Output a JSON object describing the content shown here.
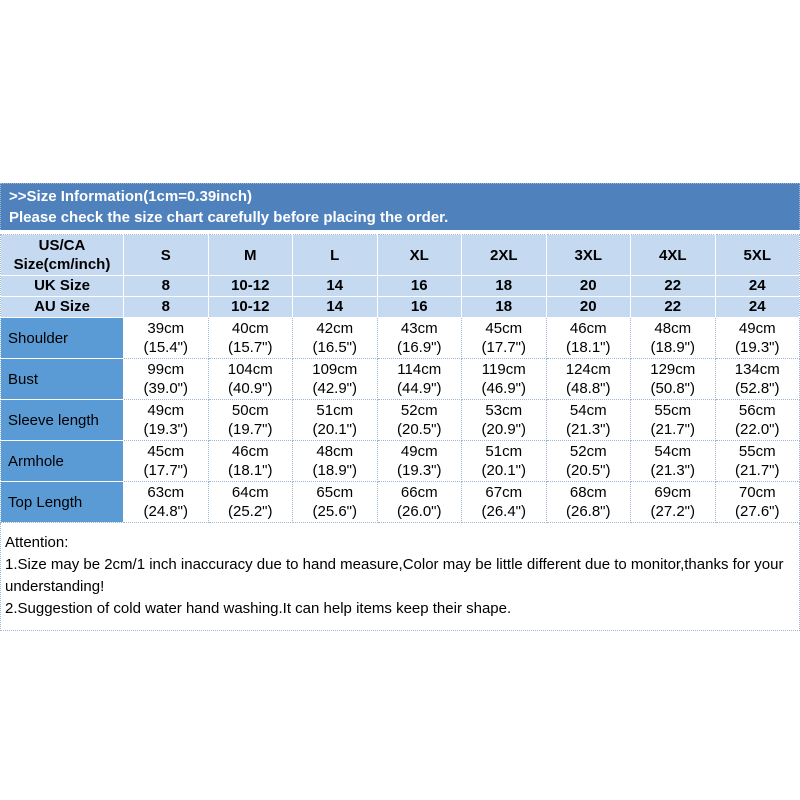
{
  "banner": {
    "line1": ">>Size Information(1cm=0.39inch)",
    "line2": "Please check the size chart carefully before placing the order."
  },
  "colors": {
    "banner_bg": "#4f81bd",
    "header_bg": "#c5d9f1",
    "label_bg": "#5b9bd5",
    "grid_line": "#9fb6cf"
  },
  "table": {
    "corner": {
      "line1": "US/CA",
      "line2": "Size(cm/inch)"
    },
    "size_headers": [
      "S",
      "M",
      "L",
      "XL",
      "2XL",
      "3XL",
      "4XL",
      "5XL"
    ],
    "uk": {
      "label": "UK Size",
      "values": [
        "8",
        "10-12",
        "14",
        "16",
        "18",
        "20",
        "22",
        "24"
      ]
    },
    "au": {
      "label": "AU Size",
      "values": [
        "8",
        "10-12",
        "14",
        "16",
        "18",
        "20",
        "22",
        "24"
      ]
    },
    "rows": [
      {
        "label": "Shoulder",
        "cm": [
          "39cm",
          "40cm",
          "42cm",
          "43cm",
          "45cm",
          "46cm",
          "48cm",
          "49cm"
        ],
        "in": [
          "(15.4\")",
          "(15.7\")",
          "(16.5\")",
          "(16.9\")",
          "(17.7\")",
          "(18.1\")",
          "(18.9\")",
          "(19.3\")"
        ]
      },
      {
        "label": "Bust",
        "cm": [
          "99cm",
          "104cm",
          "109cm",
          "114cm",
          "119cm",
          "124cm",
          "129cm",
          "134cm"
        ],
        "in": [
          "(39.0\")",
          "(40.9\")",
          "(42.9\")",
          "(44.9\")",
          "(46.9\")",
          "(48.8\")",
          "(50.8\")",
          "(52.8\")"
        ]
      },
      {
        "label": "Sleeve length",
        "cm": [
          "49cm",
          "50cm",
          "51cm",
          "52cm",
          "53cm",
          "54cm",
          "55cm",
          "56cm"
        ],
        "in": [
          "(19.3\")",
          "(19.7\")",
          "(20.1\")",
          "(20.5\")",
          "(20.9\")",
          "(21.3\")",
          "(21.7\")",
          "(22.0\")"
        ]
      },
      {
        "label": "Armhole",
        "cm": [
          "45cm",
          "46cm",
          "48cm",
          "49cm",
          "51cm",
          "52cm",
          "54cm",
          "55cm"
        ],
        "in": [
          "(17.7\")",
          "(18.1\")",
          "(18.9\")",
          "(19.3\")",
          "(20.1\")",
          "(20.5\")",
          "(21.3\")",
          "(21.7\")"
        ]
      },
      {
        "label": "Top Length",
        "cm": [
          "63cm",
          "64cm",
          "65cm",
          "66cm",
          "67cm",
          "68cm",
          "69cm",
          "70cm"
        ],
        "in": [
          "(24.8\")",
          "(25.2\")",
          "(25.6\")",
          "(26.0\")",
          "(26.4\")",
          "(26.8\")",
          "(27.2\")",
          "(27.6\")"
        ]
      }
    ]
  },
  "attention": {
    "title": "Attention:",
    "item1": "1.Size may be 2cm/1 inch inaccuracy due to hand measure,Color may be little different due to monitor,thanks for your understanding!",
    "item2": "2.Suggestion of cold water hand washing.It can help items keep their shape."
  }
}
